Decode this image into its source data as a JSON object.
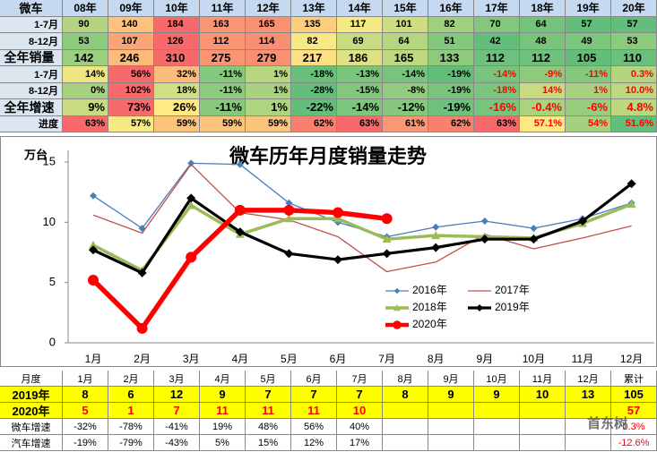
{
  "top_table": {
    "header": [
      "微车",
      "08年",
      "09年",
      "10年",
      "11年",
      "12年",
      "13年",
      "14年",
      "15年",
      "16年",
      "17年",
      "18年",
      "19年",
      "20年"
    ],
    "rows": [
      [
        "1-7月",
        "90",
        "140",
        "184",
        "163",
        "165",
        "135",
        "117",
        "101",
        "82",
        "70",
        "64",
        "57",
        "57"
      ],
      [
        "8-12月",
        "53",
        "107",
        "126",
        "112",
        "114",
        "82",
        "69",
        "64",
        "51",
        "42",
        "48",
        "49",
        "53"
      ],
      [
        "全年销量",
        "142",
        "246",
        "310",
        "275",
        "279",
        "217",
        "186",
        "165",
        "133",
        "112",
        "112",
        "105",
        "110"
      ],
      [
        "1-7月",
        "14%",
        "56%",
        "32%",
        "-11%",
        "1%",
        "-18%",
        "-13%",
        "-14%",
        "-19%",
        "-14%",
        "-9%",
        "-11%",
        "0.3%"
      ],
      [
        "8-12月",
        "0%",
        "102%",
        "18%",
        "-11%",
        "1%",
        "-28%",
        "-15%",
        "-8%",
        "-19%",
        "-18%",
        "14%",
        "1%",
        "10.0%"
      ],
      [
        "全年增速",
        "9%",
        "73%",
        "26%",
        "-11%",
        "1%",
        "-22%",
        "-14%",
        "-12%",
        "-19%",
        "-16%",
        "-0.4%",
        "-6%",
        "4.8%"
      ],
      [
        "进度",
        "63%",
        "57%",
        "59%",
        "59%",
        "59%",
        "62%",
        "63%",
        "61%",
        "62%",
        "63%",
        "57.1%",
        "54%",
        "51.6%"
      ]
    ]
  },
  "chart_data": {
    "type": "line",
    "title": "微车历年月度销量走势",
    "y_label": "万台",
    "categories": [
      "1月",
      "2月",
      "3月",
      "4月",
      "5月",
      "6月",
      "7月",
      "8月",
      "9月",
      "10月",
      "11月",
      "12月"
    ],
    "ylim": [
      0,
      15
    ],
    "yticks": [
      0,
      5,
      10,
      15
    ],
    "series": [
      {
        "name": "2016年",
        "color": "#4a7ebb",
        "values": [
          12.2,
          9.5,
          14.9,
          14.8,
          11.6,
          10.0,
          8.8,
          9.6,
          10.1,
          9.5,
          10.3,
          11.6
        ]
      },
      {
        "name": "2017年",
        "color": "#c0504d",
        "values": [
          10.6,
          9.1,
          14.8,
          10.8,
          10.2,
          8.8,
          5.9,
          6.7,
          9.0,
          7.8,
          8.7,
          9.7
        ]
      },
      {
        "name": "2018年",
        "color": "#9bbb59",
        "values": [
          8.1,
          6.0,
          11.4,
          9.0,
          10.3,
          10.3,
          8.6,
          8.9,
          8.8,
          8.7,
          9.9,
          11.5
        ]
      },
      {
        "name": "2019年",
        "color": "#000000",
        "values": [
          7.7,
          5.8,
          12.0,
          9.2,
          7.4,
          6.9,
          7.4,
          7.9,
          8.6,
          8.6,
          10.1,
          13.2
        ]
      },
      {
        "name": "2020年",
        "color": "#ff0000",
        "values": [
          5.2,
          1.2,
          7.1,
          11.0,
          11.0,
          10.8,
          10.3,
          null,
          null,
          null,
          null,
          null
        ]
      }
    ]
  },
  "bottom_table": {
    "header": [
      "月度",
      "1月",
      "2月",
      "3月",
      "4月",
      "5月",
      "6月",
      "7月",
      "8月",
      "9月",
      "10月",
      "11月",
      "12月",
      "累计"
    ],
    "rows": [
      [
        "2019年",
        "8",
        "6",
        "12",
        "9",
        "7",
        "7",
        "7",
        "8",
        "9",
        "9",
        "10",
        "13",
        "105"
      ],
      [
        "2020年",
        "5",
        "1",
        "7",
        "11",
        "11",
        "11",
        "10",
        null,
        null,
        null,
        null,
        null,
        "57"
      ],
      [
        "微车增速",
        "-32%",
        "-78%",
        "-41%",
        "19%",
        "48%",
        "56%",
        "40%",
        null,
        null,
        null,
        null,
        null,
        "0.3%"
      ],
      [
        "汽车增速",
        "-19%",
        "-79%",
        "-43%",
        "5%",
        "15%",
        "12%",
        "17%",
        null,
        null,
        null,
        null,
        null,
        "-12.6%"
      ]
    ]
  },
  "watermark": "首东树"
}
